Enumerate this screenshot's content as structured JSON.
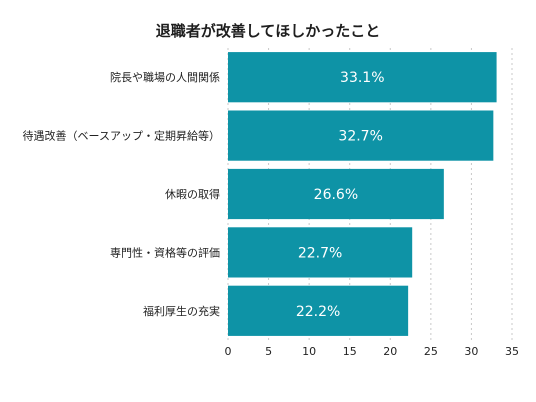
{
  "chart_data": {
    "type": "bar",
    "orientation": "horizontal",
    "title": "退職者が改善してほしかったこと",
    "categories": [
      "院長や職場の人間関係",
      "待遇改善（ベースアップ・定期昇給等）",
      "休暇の取得",
      "専門性・資格等の評価",
      "福利厚生の充実"
    ],
    "values": [
      33.1,
      32.7,
      26.6,
      22.7,
      22.2
    ],
    "data_labels": [
      "33.1%",
      "32.7%",
      "26.6%",
      "22.7%",
      "22.2%"
    ],
    "xlim": [
      0,
      35
    ],
    "xticks": [
      0,
      5,
      10,
      15,
      20,
      25,
      30,
      35
    ],
    "grid": "vertical dashed",
    "legend": "none",
    "bar_color": "#0e93a6"
  }
}
